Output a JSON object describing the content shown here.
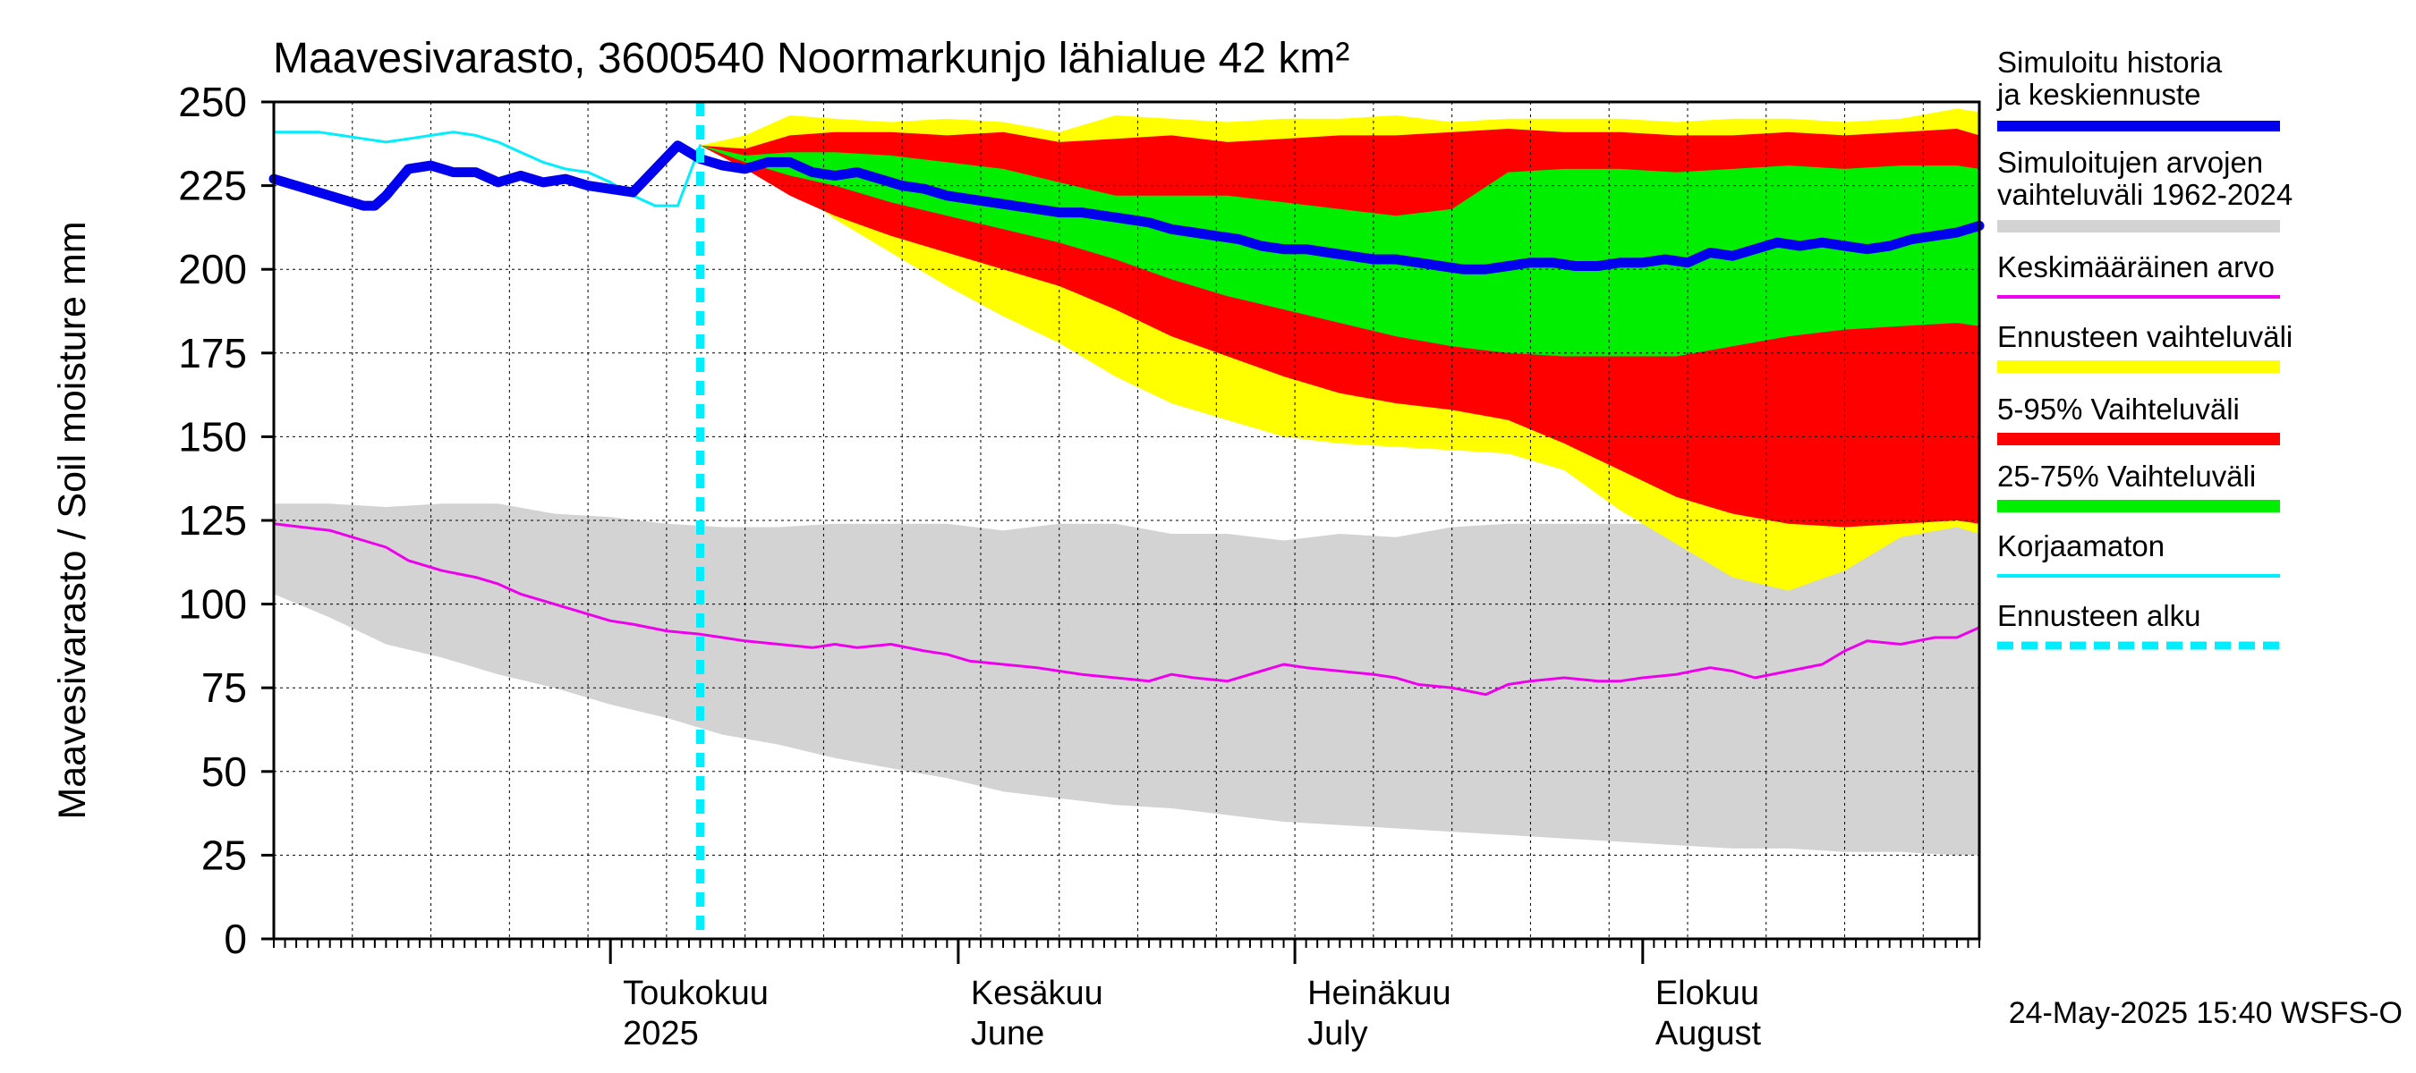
{
  "chart_data": {
    "type": "area",
    "title": "Maavesivarasto, 3600540 Noormarkunjo lähialue 42 km²",
    "ylabel": "Maavesivarasto / Soil moisture   mm",
    "xlabel": "",
    "ylim": [
      0,
      250
    ],
    "yticks": [
      0,
      25,
      50,
      75,
      100,
      125,
      150,
      175,
      200,
      225,
      250
    ],
    "x_unit": "day index from 1 April 2025 (day 0 = 1 Apr)",
    "xlim": [
      0,
      152
    ],
    "grid": true,
    "forecast_start_day": 38,
    "month_labels": [
      {
        "day": 30,
        "line1": "Toukokuu",
        "line2": "2025"
      },
      {
        "day": 61,
        "line1": "Kesäkuu",
        "line2": "June"
      },
      {
        "day": 91,
        "line1": "Heinäkuu",
        "line2": "July"
      },
      {
        "day": 122,
        "line1": "Elokuu",
        "line2": "August"
      }
    ],
    "timestamp": "24-May-2025 15:40 WSFS-O",
    "legend": [
      {
        "label": "Simuloitu historia ja keskiennuste",
        "color": "#0000ee",
        "style": "thick"
      },
      {
        "label": "Simuloitujen arvojen vaihteluväli 1962-2024",
        "color": "#d3d3d3",
        "style": "band"
      },
      {
        "label": "Keskimääräinen arvo",
        "color": "#ee00ee",
        "style": "line"
      },
      {
        "label": "Ennusteen vaihteluväli",
        "color": "#ffff00",
        "style": "band"
      },
      {
        "label": "5-95% Vaihteluväli",
        "color": "#ff0000",
        "style": "band"
      },
      {
        "label": "25-75% Vaihteluväli",
        "color": "#00ee00",
        "style": "band"
      },
      {
        "label": "Korjaamaton",
        "color": "#00eeff",
        "style": "line"
      },
      {
        "label": "Ennusteen alku",
        "color": "#00eeff",
        "style": "dashed"
      }
    ],
    "series": [
      {
        "name": "Simuloitujen arvojen vaihteluväli 1962-2024",
        "kind": "band",
        "color": "#d3d3d3",
        "x": [
          0,
          5,
          10,
          15,
          20,
          25,
          30,
          35,
          40,
          45,
          50,
          55,
          60,
          65,
          70,
          75,
          80,
          85,
          90,
          95,
          100,
          105,
          110,
          115,
          120,
          125,
          130,
          135,
          140,
          145,
          150,
          152
        ],
        "upper": [
          130,
          130,
          129,
          130,
          130,
          127,
          126,
          124,
          123,
          123,
          124,
          124,
          124,
          122,
          124,
          124,
          121,
          121,
          119,
          121,
          120,
          123,
          124,
          124,
          124,
          124,
          123,
          123,
          123,
          123,
          125,
          125
        ],
        "lower": [
          103,
          96,
          88,
          84,
          79,
          75,
          70,
          66,
          61,
          58,
          54,
          51,
          48,
          44,
          42,
          40,
          39,
          37,
          35,
          34,
          33,
          32,
          31,
          30,
          29,
          28,
          27,
          27,
          26,
          26,
          25,
          25
        ]
      },
      {
        "name": "Ennusteen vaihteluväli",
        "kind": "band",
        "color": "#ffff00",
        "x": [
          38,
          42,
          46,
          50,
          55,
          60,
          65,
          70,
          75,
          80,
          85,
          90,
          95,
          100,
          105,
          110,
          115,
          120,
          125,
          130,
          135,
          140,
          145,
          150,
          152
        ],
        "upper": [
          237,
          240,
          246,
          245,
          244,
          245,
          244,
          241,
          246,
          245,
          244,
          245,
          245,
          246,
          244,
          245,
          245,
          245,
          244,
          245,
          245,
          244,
          245,
          248,
          247
        ],
        "lower": [
          237,
          232,
          225,
          215,
          205,
          195,
          186,
          178,
          168,
          160,
          155,
          150,
          148,
          147,
          146,
          145,
          140,
          128,
          118,
          108,
          104,
          110,
          120,
          123,
          121
        ]
      },
      {
        "name": "5-95% Vaihteluväli",
        "kind": "band",
        "color": "#ff0000",
        "x": [
          38,
          42,
          46,
          50,
          55,
          60,
          65,
          70,
          75,
          80,
          85,
          90,
          95,
          100,
          105,
          110,
          115,
          120,
          125,
          130,
          135,
          140,
          145,
          150,
          152
        ],
        "upper": [
          237,
          236,
          240,
          241,
          241,
          240,
          241,
          238,
          239,
          240,
          238,
          239,
          240,
          240,
          241,
          242,
          241,
          241,
          240,
          240,
          241,
          240,
          241,
          242,
          240
        ],
        "lower": [
          237,
          230,
          222,
          216,
          210,
          205,
          200,
          195,
          188,
          180,
          174,
          168,
          163,
          160,
          158,
          155,
          148,
          140,
          132,
          127,
          124,
          123,
          124,
          125,
          124
        ]
      },
      {
        "name": "25-75% Vaihteluväli",
        "kind": "band",
        "color": "#00ee00",
        "x": [
          38,
          42,
          46,
          50,
          55,
          60,
          65,
          70,
          75,
          80,
          85,
          90,
          95,
          100,
          105,
          110,
          115,
          120,
          125,
          130,
          135,
          140,
          145,
          150,
          152
        ],
        "upper": [
          237,
          234,
          235,
          235,
          234,
          232,
          230,
          226,
          222,
          222,
          222,
          220,
          218,
          216,
          218,
          229,
          230,
          230,
          229,
          230,
          231,
          230,
          231,
          231,
          230
        ],
        "lower": [
          237,
          232,
          228,
          225,
          220,
          216,
          212,
          208,
          203,
          197,
          192,
          188,
          184,
          180,
          177,
          175,
          174,
          174,
          174,
          177,
          180,
          182,
          183,
          184,
          183
        ]
      },
      {
        "name": "Keskimääräinen arvo",
        "kind": "line",
        "color": "#ee00ee",
        "x": [
          0,
          5,
          8,
          10,
          12,
          15,
          18,
          20,
          22,
          25,
          28,
          30,
          32,
          35,
          38,
          40,
          42,
          45,
          48,
          50,
          52,
          55,
          58,
          60,
          62,
          65,
          68,
          70,
          72,
          75,
          78,
          80,
          82,
          85,
          88,
          90,
          92,
          95,
          98,
          100,
          102,
          105,
          108,
          110,
          112,
          115,
          118,
          120,
          122,
          125,
          128,
          130,
          132,
          135,
          138,
          140,
          142,
          145,
          148,
          150,
          152
        ],
        "y": [
          124,
          122,
          119,
          117,
          113,
          110,
          108,
          106,
          103,
          100,
          97,
          95,
          94,
          92,
          91,
          90,
          89,
          88,
          87,
          88,
          87,
          88,
          86,
          85,
          83,
          82,
          81,
          80,
          79,
          78,
          77,
          79,
          78,
          77,
          80,
          82,
          81,
          80,
          79,
          78,
          76,
          75,
          73,
          76,
          77,
          78,
          77,
          77,
          78,
          79,
          81,
          80,
          78,
          80,
          82,
          86,
          89,
          88,
          90,
          90,
          93
        ]
      },
      {
        "name": "Korjaamaton",
        "kind": "line",
        "color": "#00eeff",
        "x": [
          0,
          2,
          4,
          6,
          8,
          10,
          12,
          14,
          16,
          18,
          20,
          22,
          24,
          26,
          28,
          30,
          32,
          34,
          36,
          37,
          38
        ],
        "y": [
          241,
          241,
          241,
          240,
          239,
          238,
          239,
          240,
          241,
          240,
          238,
          235,
          232,
          230,
          229,
          226,
          222,
          219,
          219,
          228,
          237
        ]
      },
      {
        "name": "Simuloitu historia ja keskiennuste",
        "kind": "line",
        "color": "#0000ee",
        "x": [
          0,
          2,
          4,
          6,
          8,
          9,
          10,
          11,
          12,
          14,
          16,
          18,
          20,
          22,
          24,
          26,
          28,
          30,
          32,
          34,
          36,
          38,
          40,
          42,
          44,
          46,
          48,
          50,
          52,
          54,
          56,
          58,
          60,
          62,
          64,
          66,
          68,
          70,
          72,
          74,
          76,
          78,
          80,
          82,
          84,
          86,
          88,
          90,
          92,
          94,
          96,
          98,
          100,
          102,
          104,
          106,
          108,
          110,
          112,
          114,
          116,
          118,
          120,
          122,
          124,
          126,
          128,
          130,
          132,
          134,
          136,
          138,
          140,
          142,
          144,
          146,
          148,
          150,
          152
        ],
        "y": [
          227,
          225,
          223,
          221,
          219,
          219,
          222,
          226,
          230,
          231,
          229,
          229,
          226,
          228,
          226,
          227,
          225,
          224,
          223,
          230,
          237,
          233,
          231,
          230,
          232,
          232,
          229,
          228,
          229,
          227,
          225,
          224,
          222,
          221,
          220,
          219,
          218,
          217,
          217,
          216,
          215,
          214,
          212,
          211,
          210,
          209,
          207,
          206,
          206,
          205,
          204,
          203,
          203,
          202,
          201,
          200,
          200,
          201,
          202,
          202,
          201,
          201,
          202,
          202,
          203,
          202,
          205,
          204,
          206,
          208,
          207,
          208,
          207,
          206,
          207,
          209,
          210,
          211,
          213
        ]
      }
    ]
  }
}
